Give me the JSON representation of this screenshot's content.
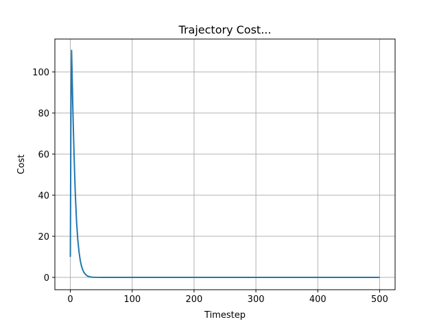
{
  "chart_data": {
    "type": "line",
    "title": "Trajectory Cost...",
    "xlabel": "Timestep",
    "ylabel": "Cost",
    "xlim": [
      -25,
      525
    ],
    "ylim": [
      -6,
      116
    ],
    "xticks": [
      0,
      100,
      200,
      300,
      400,
      500
    ],
    "yticks": [
      0,
      20,
      40,
      60,
      80,
      100
    ],
    "grid": true,
    "series": [
      {
        "color": "#1f77b4",
        "x": [
          0,
          1,
          2,
          3,
          4,
          5,
          6,
          7,
          8,
          10,
          12,
          14,
          16,
          18,
          20,
          22,
          25,
          28,
          32,
          36,
          40,
          50,
          70,
          100,
          200,
          300,
          400,
          500
        ],
        "y": [
          10,
          82,
          110.5,
          97,
          83,
          71,
          60,
          50,
          41,
          27.5,
          18.5,
          12.5,
          8.3,
          5.5,
          3.7,
          2.4,
          1.3,
          0.6,
          0.25,
          0.1,
          0.05,
          0.02,
          0.01,
          0,
          0,
          0,
          0,
          0
        ]
      }
    ]
  }
}
